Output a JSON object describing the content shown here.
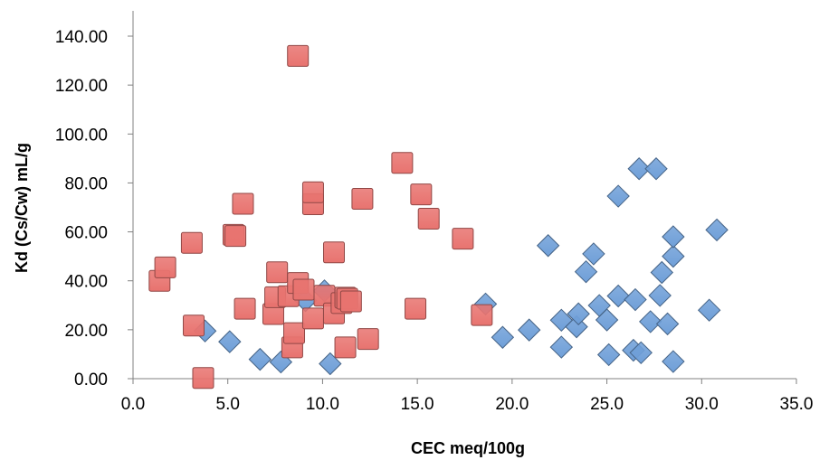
{
  "chart_data": {
    "type": "scatter",
    "xlabel": "CEC meq/100g",
    "ylabel": "Kd (Cs/Cw) mL/g",
    "xlim": [
      0,
      35
    ],
    "ylim": [
      0,
      140
    ],
    "xticks": [
      0,
      5,
      10,
      15,
      20,
      25,
      30,
      35
    ],
    "yticks": [
      0,
      20,
      40,
      60,
      80,
      100,
      120,
      140
    ],
    "xtick_labels": [
      "0.0",
      "5.0",
      "10.0",
      "15.0",
      "20.0",
      "25.0",
      "30.0",
      "35.0"
    ],
    "ytick_labels": [
      "0.00",
      "20.00",
      "40.00",
      "60.00",
      "80.00",
      "100.00",
      "120.00",
      "140.00"
    ],
    "grid": false,
    "legend": "none",
    "series": [
      {
        "marker": "diamond",
        "color": "#6f9fd8",
        "points": [
          [
            3.8,
            19.5
          ],
          [
            5.1,
            15.1
          ],
          [
            6.7,
            7.9
          ],
          [
            7.8,
            6.8
          ],
          [
            9.1,
            31.9
          ],
          [
            10.1,
            35.9
          ],
          [
            10.4,
            6.1
          ],
          [
            18.6,
            30.5
          ],
          [
            19.5,
            16.9
          ],
          [
            20.9,
            19.9
          ],
          [
            21.9,
            54.4
          ],
          [
            22.6,
            23.9
          ],
          [
            22.6,
            12.9
          ],
          [
            23.4,
            21.2
          ],
          [
            23.5,
            26.5
          ],
          [
            23.9,
            43.7
          ],
          [
            24.3,
            51.0
          ],
          [
            24.6,
            29.9
          ],
          [
            25.0,
            24.0
          ],
          [
            25.1,
            9.8
          ],
          [
            25.6,
            74.6
          ],
          [
            25.6,
            33.8
          ],
          [
            26.4,
            11.6
          ],
          [
            26.5,
            32.3
          ],
          [
            26.7,
            85.8
          ],
          [
            26.8,
            10.6
          ],
          [
            27.3,
            23.3
          ],
          [
            27.6,
            85.8
          ],
          [
            27.8,
            34.0
          ],
          [
            27.9,
            43.4
          ],
          [
            28.2,
            22.4
          ],
          [
            28.5,
            50.0
          ],
          [
            28.5,
            58.0
          ],
          [
            28.5,
            7.0
          ],
          [
            30.4,
            28.0
          ],
          [
            30.8,
            60.8
          ]
        ]
      },
      {
        "marker": "square",
        "color": "#e8736f",
        "points": [
          [
            1.4,
            40.0
          ],
          [
            1.7,
            45.5
          ],
          [
            3.1,
            55.5
          ],
          [
            3.2,
            21.7
          ],
          [
            3.7,
            0.3
          ],
          [
            5.3,
            58.8
          ],
          [
            5.4,
            58.3
          ],
          [
            5.8,
            71.5
          ],
          [
            5.9,
            28.6
          ],
          [
            7.4,
            26.4
          ],
          [
            7.5,
            33.3
          ],
          [
            7.6,
            43.5
          ],
          [
            8.2,
            33.7
          ],
          [
            8.4,
            12.8
          ],
          [
            8.5,
            18.6
          ],
          [
            8.7,
            39.1
          ],
          [
            8.7,
            131.9
          ],
          [
            9.0,
            36.4
          ],
          [
            9.5,
            71.3
          ],
          [
            9.5,
            24.6
          ],
          [
            9.5,
            76.2
          ],
          [
            10.1,
            33.9
          ],
          [
            10.6,
            26.7
          ],
          [
            10.6,
            51.6
          ],
          [
            11.0,
            30.9
          ],
          [
            11.2,
            33.1
          ],
          [
            11.3,
            32.7
          ],
          [
            11.5,
            31.6
          ],
          [
            11.2,
            12.8
          ],
          [
            12.1,
            73.5
          ],
          [
            12.4,
            16.2
          ],
          [
            14.2,
            88.2
          ],
          [
            14.9,
            28.6
          ],
          [
            15.2,
            75.3
          ],
          [
            15.6,
            65.4
          ],
          [
            17.4,
            57.2
          ],
          [
            18.4,
            26.0
          ]
        ]
      }
    ]
  }
}
